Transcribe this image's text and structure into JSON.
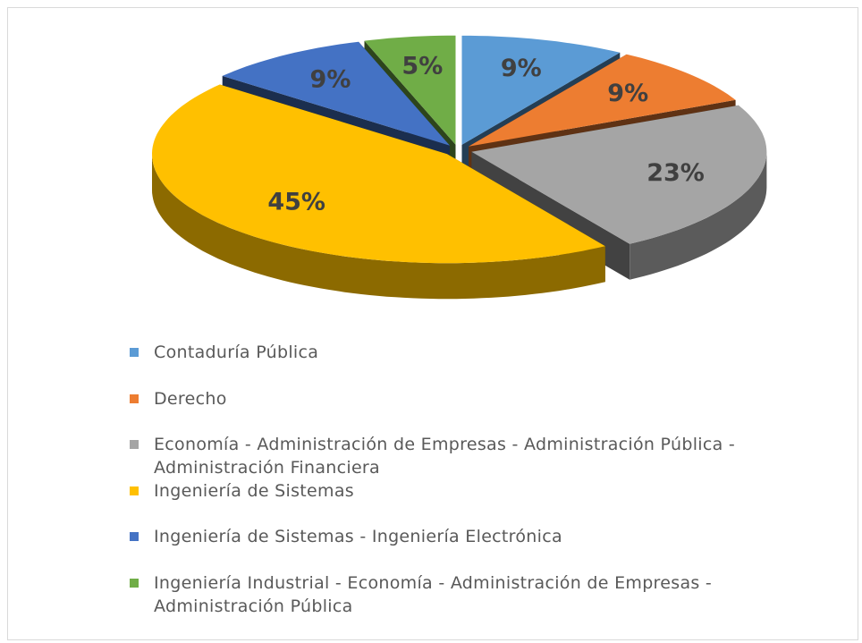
{
  "chart_data": {
    "type": "pie",
    "categories": [
      "Contaduría Pública",
      "Derecho",
      "Economía - Administración de Empresas - Administración Pública - Administración Financiera",
      "Ingeniería de Sistemas",
      "Ingeniería de Sistemas - Ingeniería Electrónica",
      "Ingeniería Industrial - Economía - Administración de Empresas - Administración Pública"
    ],
    "values": [
      9,
      9,
      23,
      45,
      9,
      5
    ],
    "value_labels": [
      "9%",
      "9%",
      "23%",
      "45%",
      "9%",
      "5%"
    ],
    "colors": [
      "#5b9bd5",
      "#ed7d31",
      "#a5a5a5",
      "#ffc000",
      "#4472c4",
      "#70ad47"
    ],
    "legend": "bottom"
  }
}
